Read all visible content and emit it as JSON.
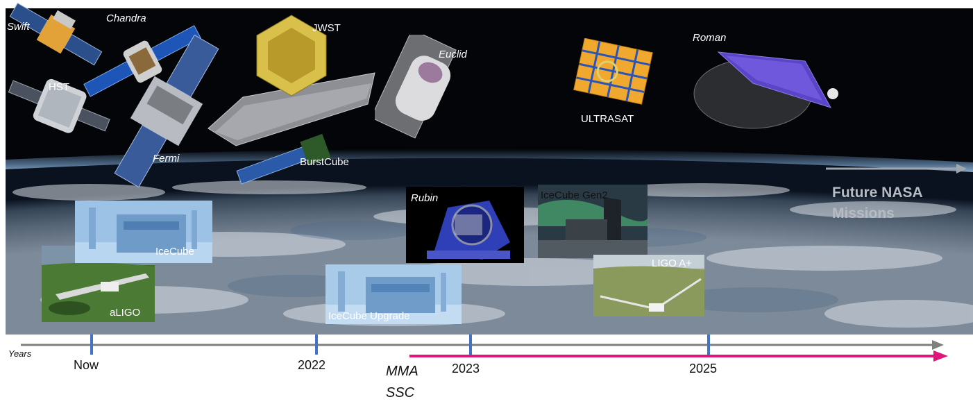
{
  "missions": {
    "swift": "Swift",
    "chandra": "Chandra",
    "hst": "HST",
    "jwst": "JWST",
    "euclid": "Euclid",
    "fermi": "Fermi",
    "burstcube": "BurstCube",
    "ultrasat": "ULTRASAT",
    "roman": "Roman",
    "future": "Future NASA Missions"
  },
  "observatories": {
    "icecube": "IceCube",
    "aligo": "aLIGO",
    "rubin": "Rubin",
    "icecube_upgrade": "IceCube Upgrade",
    "icecube_gen2": "IceCube Gen2",
    "ligo_aplus": "LIGO A+"
  },
  "timeline": {
    "axis_label": "Years",
    "ticks": [
      "Now",
      "2022",
      "2023",
      "2025"
    ],
    "mma_label": "MMA SSC"
  },
  "colors": {
    "axis": "#7f7f7f",
    "tick": "#4472c4",
    "mma": "#e0157a",
    "space": "#030508"
  }
}
